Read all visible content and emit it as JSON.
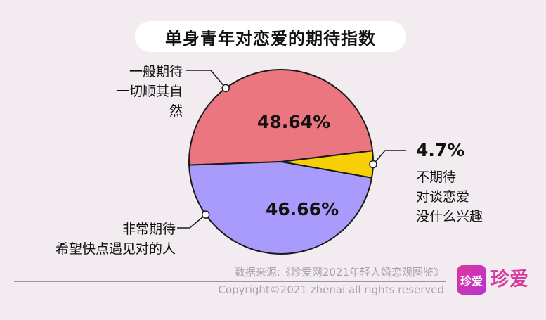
{
  "chart_data": {
    "type": "pie",
    "title": "单身青年对恋爱的期待指数",
    "slices": [
      {
        "label_value": "48.64%",
        "value": 48.64,
        "color": "#ec7680",
        "desc": [
          "一般期待",
          "一切顺其自然"
        ]
      },
      {
        "label_value": "4.7%",
        "value": 4.7,
        "color": "#f7cf06",
        "desc": [
          "不期待",
          "对谈恋爱",
          "没什么兴趣"
        ]
      },
      {
        "label_value": "46.66%",
        "value": 46.66,
        "color": "#a99bfb",
        "desc": [
          "非常期待",
          "希望快点遇见对的人"
        ]
      }
    ]
  },
  "footer": {
    "source": "数据来源:《珍爱网2021年轻人婚恋观图鉴》",
    "copyright": "Copyright©2021  zhenai  all rights reserved"
  },
  "logo": {
    "badge": "珍爱",
    "text": "珍爱"
  }
}
